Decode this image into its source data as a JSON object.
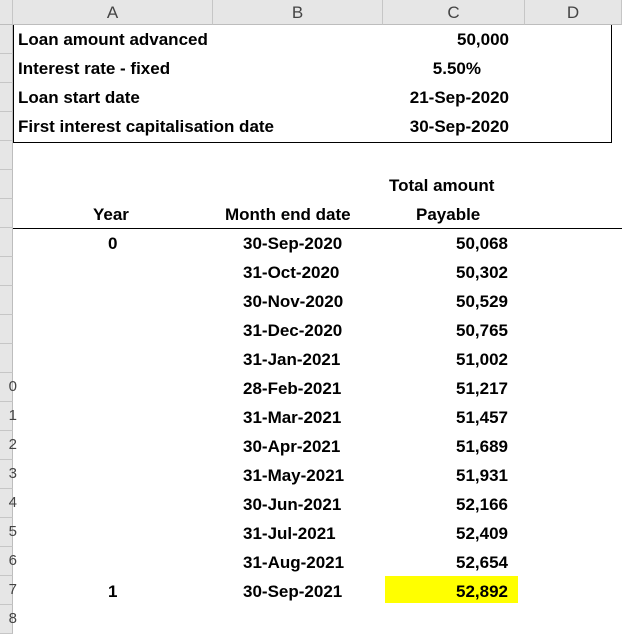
{
  "columns": [
    "A",
    "B",
    "C",
    "D"
  ],
  "row_headers": [
    "",
    "",
    "",
    "",
    "",
    "",
    "",
    "",
    "",
    "",
    "",
    "",
    "0",
    "1",
    "2",
    "3",
    "4",
    "5",
    "6",
    "7",
    "8"
  ],
  "inputs": [
    {
      "label": "Loan amount advanced",
      "value": "50,000"
    },
    {
      "label": "Interest rate - fixed",
      "value": "5.50%"
    },
    {
      "label": "Loan start date",
      "value": "21-Sep-2020"
    },
    {
      "label": "First interest capitalisation date",
      "value": "30-Sep-2020"
    }
  ],
  "table": {
    "header_year": "Year",
    "header_date": "Month end date",
    "header_amount_line1": "Total amount",
    "header_amount_line2": "Payable",
    "rows": [
      {
        "year": "0",
        "date": "30-Sep-2020",
        "amount": "50,068"
      },
      {
        "year": "",
        "date": "31-Oct-2020",
        "amount": "50,302"
      },
      {
        "year": "",
        "date": "30-Nov-2020",
        "amount": "50,529"
      },
      {
        "year": "",
        "date": "31-Dec-2020",
        "amount": "50,765"
      },
      {
        "year": "",
        "date": "31-Jan-2021",
        "amount": "51,002"
      },
      {
        "year": "",
        "date": "28-Feb-2021",
        "amount": "51,217"
      },
      {
        "year": "",
        "date": "31-Mar-2021",
        "amount": "51,457"
      },
      {
        "year": "",
        "date": "30-Apr-2021",
        "amount": "51,689"
      },
      {
        "year": "",
        "date": "31-May-2021",
        "amount": "51,931"
      },
      {
        "year": "",
        "date": "30-Jun-2021",
        "amount": "52,166"
      },
      {
        "year": "",
        "date": "31-Jul-2021",
        "amount": "52,409"
      },
      {
        "year": "",
        "date": "31-Aug-2021",
        "amount": "52,654"
      },
      {
        "year": "1",
        "date": "30-Sep-2021",
        "amount": "52,892"
      }
    ]
  },
  "colors": {
    "highlight": "#ffff00",
    "header_bg": "#e6e6e6"
  }
}
